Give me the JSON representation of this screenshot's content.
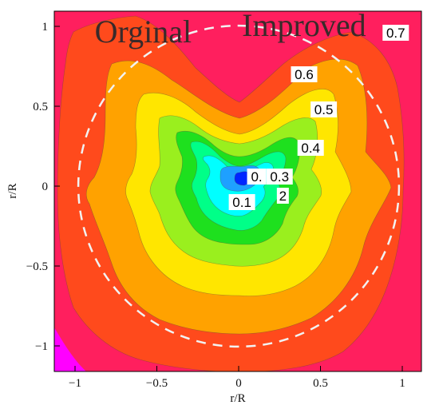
{
  "chart_data": {
    "type": "contour",
    "xlabel": "r/R",
    "ylabel": "r/R",
    "xlim": [
      -1.15,
      1.15
    ],
    "ylim": [
      -1.15,
      1.1
    ],
    "x_ticks": [
      {
        "value": -1,
        "label": "−1"
      },
      {
        "value": -0.5,
        "label": "−0.5"
      },
      {
        "value": 0,
        "label": "0"
      },
      {
        "value": 0.5,
        "label": "0.5"
      },
      {
        "value": 1,
        "label": "1"
      }
    ],
    "y_ticks": [
      {
        "value": 1,
        "label": "1"
      },
      {
        "value": 0.5,
        "label": "0.5"
      },
      {
        "value": 0,
        "label": "0"
      },
      {
        "value": -0.5,
        "label": "−0.5"
      },
      {
        "value": -1,
        "label": "−1"
      }
    ],
    "annotations": [
      {
        "text": "Orginal",
        "x": -0.88,
        "y": 0.97
      },
      {
        "text": "Improved",
        "x": 0.02,
        "y": 1.01
      }
    ],
    "contour_levels": [
      {
        "level": 0.8,
        "color": "#ff1f5e"
      },
      {
        "level": 0.7,
        "color": "#ff4a1c"
      },
      {
        "level": 0.6,
        "color": "#ffa200"
      },
      {
        "level": 0.5,
        "color": "#ffe600"
      },
      {
        "level": 0.4,
        "color": "#9aef1e"
      },
      {
        "level": 0.3,
        "color": "#1ee01e"
      },
      {
        "level": 0.2,
        "color": "#00ff88"
      },
      {
        "level": 0.1,
        "color": "#00ffff"
      },
      {
        "level": 0.05,
        "color": "#1ea0ff"
      },
      {
        "level": 0.0,
        "color": "#0026ff"
      }
    ],
    "contour_labels": [
      {
        "text": "0.7",
        "x": 0.96,
        "y": 0.96
      },
      {
        "text": "0.6",
        "x": 0.4,
        "y": 0.7
      },
      {
        "text": "0.5",
        "x": 0.52,
        "y": 0.48
      },
      {
        "text": "0.4",
        "x": 0.44,
        "y": 0.24
      },
      {
        "text": "0.3",
        "x": 0.25,
        "y": 0.06
      },
      {
        "text": "0.",
        "x": 0.11,
        "y": 0.06
      },
      {
        "text": "2",
        "x": 0.27,
        "y": -0.06
      },
      {
        "text": "0.1",
        "x": 0.02,
        "y": -0.1
      }
    ],
    "reference_circle": {
      "style": "dashed",
      "color": "#f2f2f2",
      "radius": 0.98
    },
    "corner_color": "#ff00ff"
  }
}
